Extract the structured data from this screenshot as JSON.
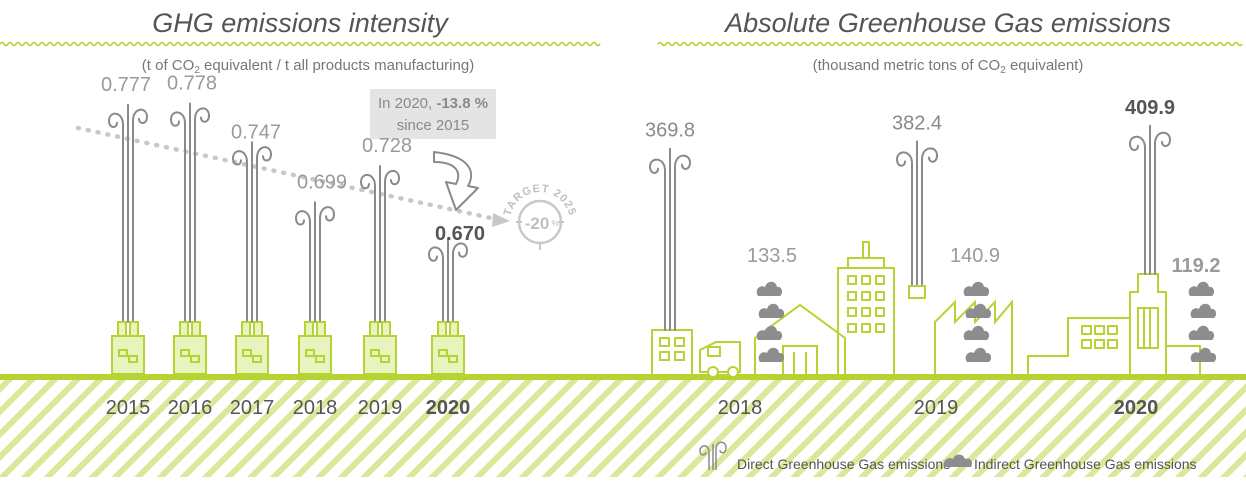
{
  "colors": {
    "green": "#b6d334",
    "stroke_gray": "#8a8a8a",
    "light_gray": "#b9b9b9",
    "dark_text": "#555555",
    "smoke": "#8d8d8d"
  },
  "icons": {
    "chimney_smoke": "swirl-smoke-icon",
    "cloud_smoke": "cloud-smoke-icon",
    "arrow": "curved-arrow-down-icon",
    "target": "target-badge-icon"
  },
  "left": {
    "title": "GHG emissions intensity",
    "subtitle_pre": "(t of CO",
    "subtitle_sub": "2",
    "subtitle_post": " equivalent / t all products manufacturing)",
    "callout_line1_pre": "In 2020, ",
    "callout_line1_bold": "-13.8 %",
    "callout_line2": "since 2015",
    "target_top": "TARGET 2025",
    "target_value": "-20",
    "target_unit": "%",
    "year_labels": [
      "2015",
      "2016",
      "2017",
      "2018",
      "2019",
      "2020"
    ]
  },
  "right": {
    "title": "Absolute Greenhouse Gas emissions",
    "subtitle_pre": "(thousand metric tons of CO",
    "subtitle_sub": "2",
    "subtitle_post": " equivalent)",
    "year_labels": [
      "2018",
      "2019",
      "2020"
    ]
  },
  "legend": {
    "direct": "Direct Greenhouse Gas emissions",
    "indirect": "Indirect Greenhouse Gas emissions"
  },
  "chart_data": [
    {
      "type": "bar",
      "title": "GHG emissions intensity",
      "ylabel": "t of CO2 equivalent / t all products manufacturing",
      "categories": [
        "2015",
        "2016",
        "2017",
        "2018",
        "2019",
        "2020"
      ],
      "values": [
        0.777,
        0.778,
        0.747,
        0.699,
        0.728,
        0.67
      ],
      "value_labels": [
        "0.777",
        "0.778",
        "0.747",
        "0.699",
        "0.728",
        "0.670"
      ],
      "ylim": [
        0.6,
        0.8
      ],
      "highlight": "2020",
      "annotations": [
        "In 2020, -13.8 % since 2015",
        "TARGET 2025 -20%"
      ]
    },
    {
      "type": "bar",
      "title": "Absolute Greenhouse Gas emissions",
      "ylabel": "thousand metric tons of CO2 equivalent",
      "categories": [
        "2018",
        "2019",
        "2020"
      ],
      "series": [
        {
          "name": "Direct Greenhouse Gas emissions",
          "values": [
            369.8,
            382.4,
            409.9
          ],
          "labels": [
            "369.8",
            "382.4",
            "409.9"
          ]
        },
        {
          "name": "Indirect Greenhouse Gas emissions",
          "values": [
            133.5,
            140.9,
            119.2
          ],
          "labels": [
            "133.5",
            "140.9",
            "119.2"
          ]
        }
      ],
      "ylim": [
        0,
        420
      ],
      "highlight": "2020"
    }
  ]
}
